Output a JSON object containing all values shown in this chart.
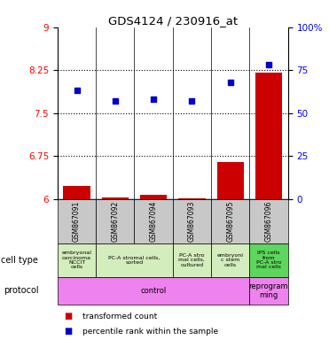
{
  "title": "GDS4124 / 230916_at",
  "samples": [
    "GSM867091",
    "GSM867092",
    "GSM867094",
    "GSM867093",
    "GSM867095",
    "GSM867096"
  ],
  "transformed_counts": [
    6.22,
    6.03,
    6.07,
    6.01,
    6.65,
    8.2
  ],
  "percentile_ranks": [
    63,
    57,
    58,
    57,
    68,
    78
  ],
  "ylim_left": [
    6,
    9
  ],
  "ylim_right": [
    0,
    100
  ],
  "yticks_left": [
    6,
    6.75,
    7.5,
    8.25,
    9
  ],
  "yticks_right": [
    0,
    25,
    50,
    75,
    100
  ],
  "ytick_labels_right": [
    "0",
    "25",
    "50",
    "75",
    "100%"
  ],
  "cell_type_spans": [
    {
      "cols": [
        0,
        0
      ],
      "label": "embryonal\ncarcinoma\nNCCIT\ncells",
      "color": "#d4edbc"
    },
    {
      "cols": [
        1,
        2
      ],
      "label": "PC-A stromal cells,\nsorted",
      "color": "#d4edbc"
    },
    {
      "cols": [
        3,
        3
      ],
      "label": "PC-A stro\nmal cells,\ncultured",
      "color": "#d4edbc"
    },
    {
      "cols": [
        4,
        4
      ],
      "label": "embryoni\nc stem\ncells",
      "color": "#d4edbc"
    },
    {
      "cols": [
        5,
        5
      ],
      "label": "IPS cells\nfrom\nPC-A stro\nmal cells",
      "color": "#5cd65c"
    }
  ],
  "protocol_spans": [
    {
      "cols": [
        0,
        4
      ],
      "label": "control",
      "color": "#ee82ee"
    },
    {
      "cols": [
        5,
        5
      ],
      "label": "reprogram\nming",
      "color": "#ee82ee"
    }
  ],
  "bar_color": "#cc0000",
  "dot_color": "#0000cc",
  "sample_bg_color": "#c8c8c8",
  "legend_items": [
    {
      "color": "#cc0000",
      "label": "transformed count"
    },
    {
      "color": "#0000cc",
      "label": "percentile rank within the sample"
    }
  ]
}
